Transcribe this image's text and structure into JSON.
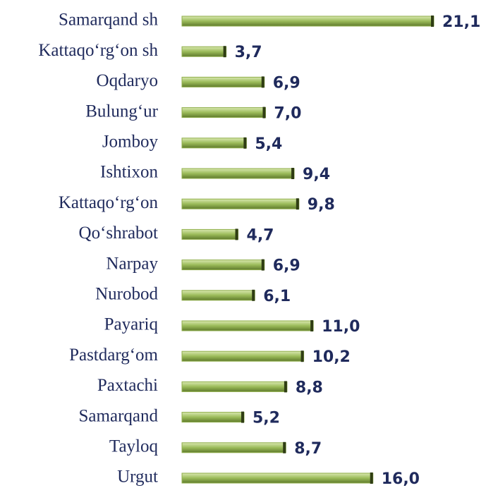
{
  "chart_data": {
    "type": "barh",
    "categories": [
      "Samarqand sh",
      "Kattaqo‘rg‘on sh",
      "Oqdaryo",
      "Bulung‘ur",
      "Jomboy",
      "Ishtixon",
      "Kattaqo‘rg‘on",
      "Qo‘shrabot",
      "Narpay",
      "Nurobod",
      "Payariq",
      "Pastdarg‘om",
      "Paxtachi",
      "Samarqand",
      "Tayloq",
      "Urgut"
    ],
    "values": [
      21.1,
      3.7,
      6.9,
      7.0,
      5.4,
      9.4,
      9.8,
      4.7,
      6.9,
      6.1,
      11.0,
      10.2,
      8.8,
      5.2,
      8.7,
      16.0
    ],
    "value_labels": [
      "21,1",
      "3,7",
      "6,9",
      "7,0",
      "5,4",
      "9,4",
      "9,8",
      "4,7",
      "6,9",
      "6,1",
      "11,0",
      "10,2",
      "8,8",
      "5,2",
      "8,7",
      "16,0"
    ],
    "color": "#8fae4a"
  }
}
